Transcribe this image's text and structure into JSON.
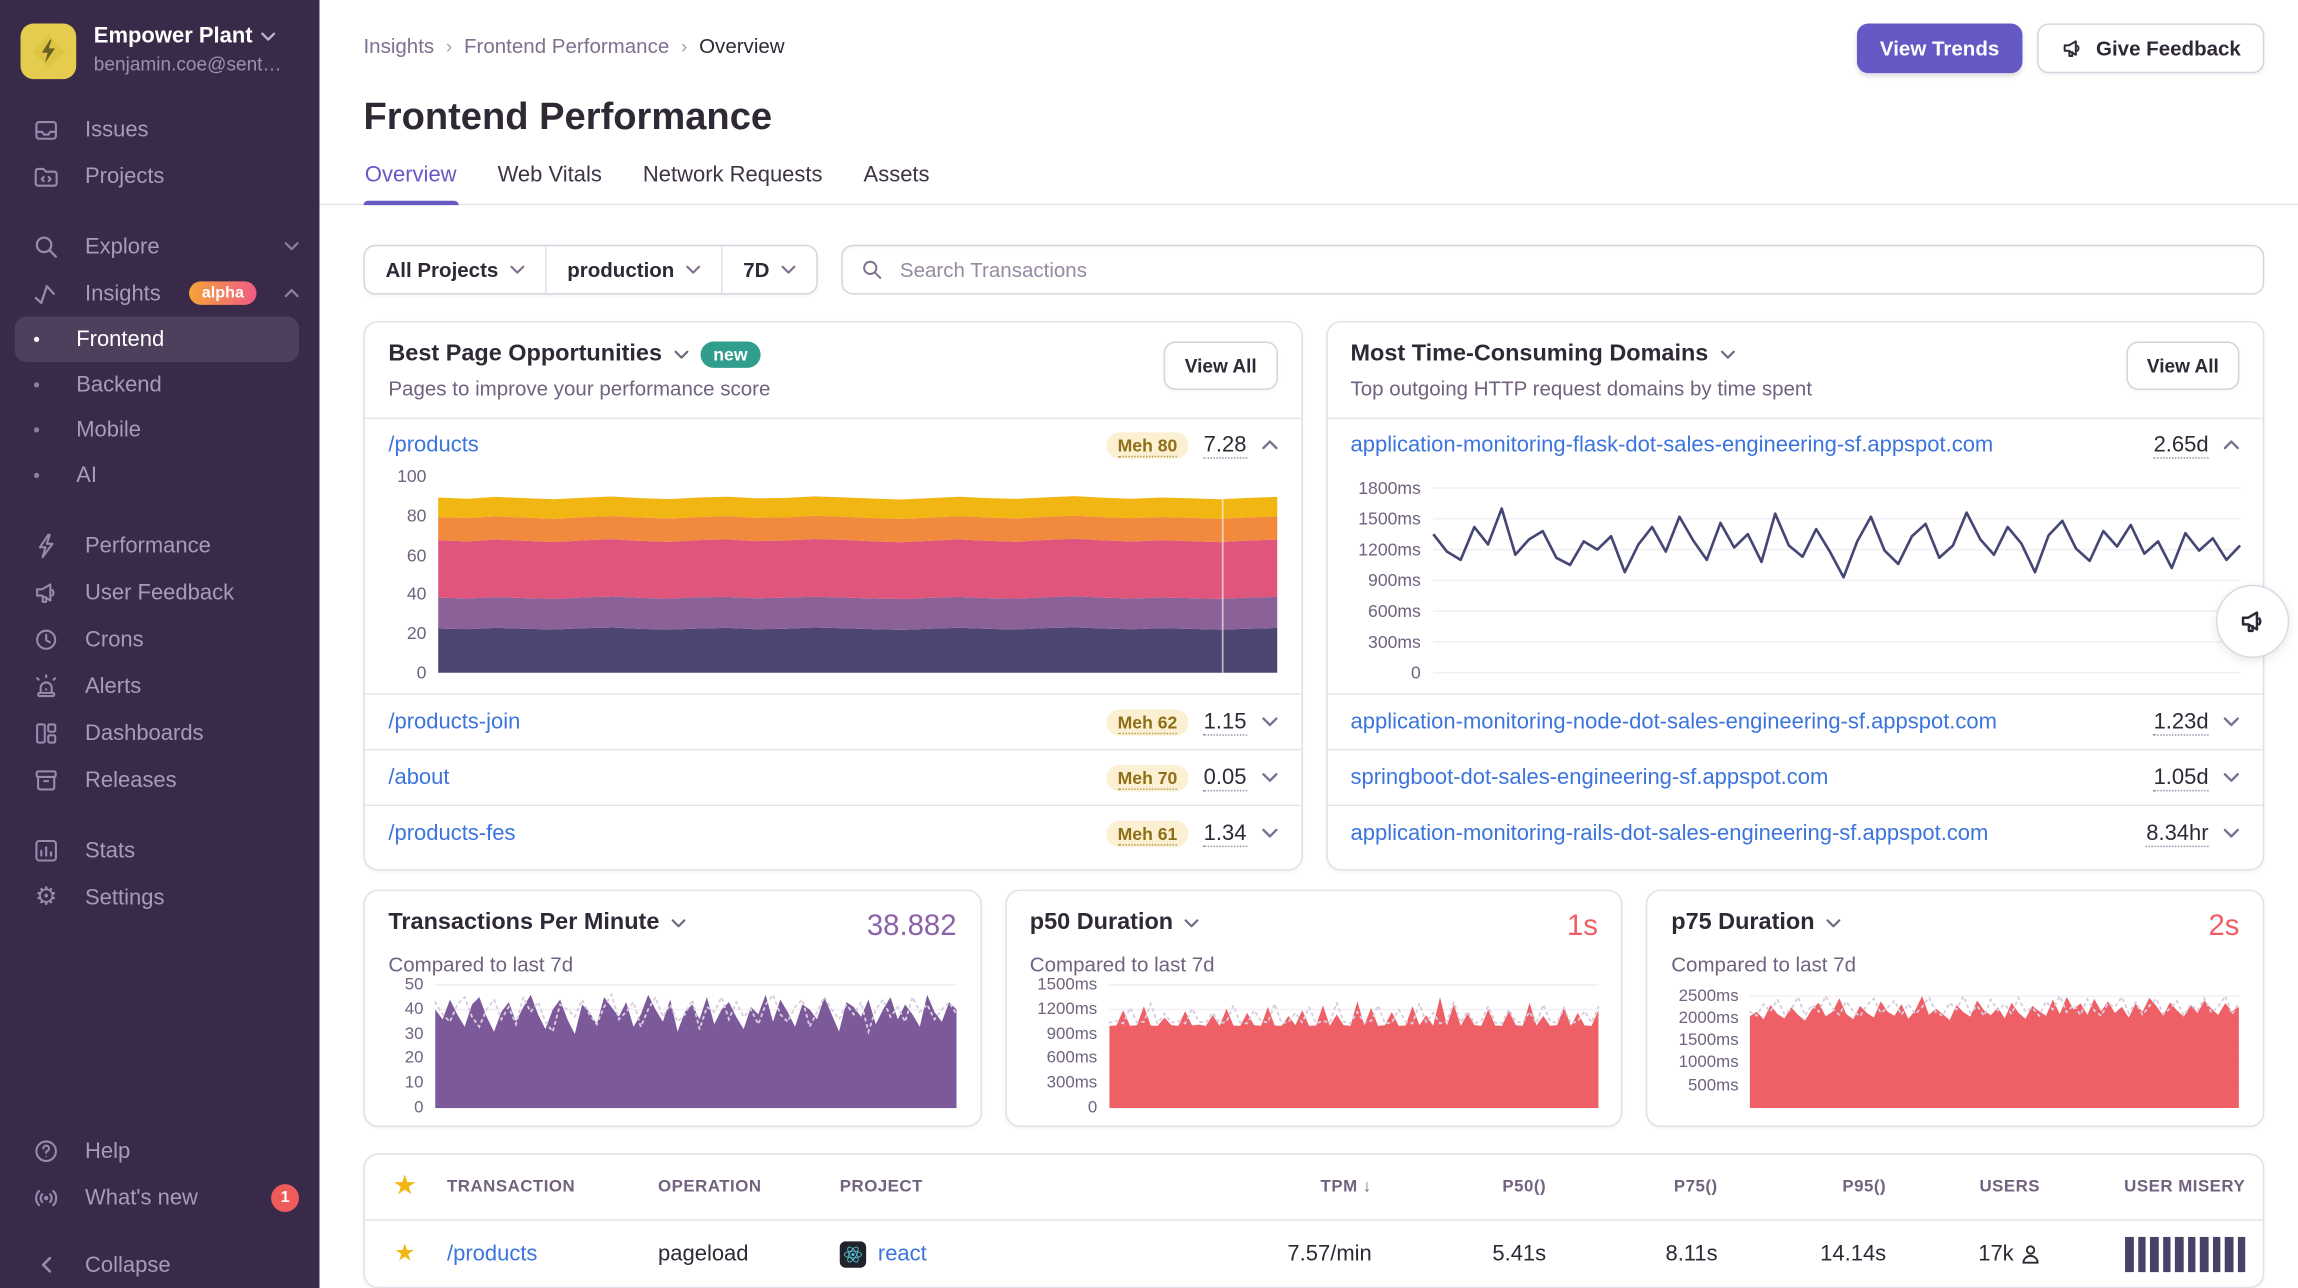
{
  "colors": {
    "accent": "#6559C5",
    "link": "#3C74DD",
    "sidebar_bg": "#3A2A4A",
    "red_value": "#EF5E65",
    "purple_value": "#8A63A8",
    "star": "#F2B712"
  },
  "sidebar": {
    "org_name": "Empower Plant",
    "org_email": "benjamin.coe@sent…",
    "issues": "Issues",
    "projects": "Projects",
    "explore": "Explore",
    "insights": "Insights",
    "insights_badge": "alpha",
    "frontend": "Frontend",
    "backend": "Backend",
    "mobile": "Mobile",
    "ai": "AI",
    "performance": "Performance",
    "user_feedback": "User Feedback",
    "crons": "Crons",
    "alerts": "Alerts",
    "dashboards": "Dashboards",
    "releases": "Releases",
    "stats": "Stats",
    "settings": "Settings",
    "help": "Help",
    "whats_new": "What's new",
    "whats_new_badge": "1",
    "collapse": "Collapse"
  },
  "header": {
    "breadcrumb": [
      "Insights",
      "Frontend Performance",
      "Overview"
    ],
    "title": "Frontend Performance",
    "view_trends": "View Trends",
    "give_feedback": "Give Feedback"
  },
  "tabs": {
    "overview": "Overview",
    "web_vitals": "Web Vitals",
    "network_requests": "Network Requests",
    "assets": "Assets"
  },
  "filters": {
    "projects": "All Projects",
    "environment": "production",
    "date_range": "7D",
    "search_placeholder": "Search Transactions"
  },
  "best_pages": {
    "title": "Best Page Opportunities",
    "badge": "new",
    "subtitle": "Pages to improve your performance score",
    "view_all": "View All",
    "expanded_row": {
      "page": "/products",
      "score_label": "Meh 80",
      "value": "7.28"
    },
    "rows": [
      {
        "page": "/products-join",
        "score_label": "Meh 62",
        "value": "1.15"
      },
      {
        "page": "/about",
        "score_label": "Meh 70",
        "value": "0.05"
      },
      {
        "page": "/products-fes",
        "score_label": "Meh 61",
        "value": "1.34"
      }
    ]
  },
  "domains": {
    "title": "Most Time-Consuming Domains",
    "subtitle": "Top outgoing HTTP request domains by time spent",
    "view_all": "View All",
    "expanded_row": {
      "domain": "application-monitoring-flask-dot-sales-engineering-sf.appspot.com",
      "value": "2.65d"
    },
    "rows": [
      {
        "domain": "application-monitoring-node-dot-sales-engineering-sf.appspot.com",
        "value": "1.23d"
      },
      {
        "domain": "springboot-dot-sales-engineering-sf.appspot.com",
        "value": "1.05d"
      },
      {
        "domain": "application-monitoring-rails-dot-sales-engineering-sf.appspot.com",
        "value": "8.34hr"
      }
    ]
  },
  "metrics": {
    "tpm": {
      "title": "Transactions Per Minute",
      "value": "38.882",
      "subtitle": "Compared to last 7d"
    },
    "p50": {
      "title": "p50 Duration",
      "value": "1s",
      "subtitle": "Compared to last 7d"
    },
    "p75": {
      "title": "p75 Duration",
      "value": "2s",
      "subtitle": "Compared to last 7d"
    }
  },
  "table": {
    "headers": {
      "transaction": "TRANSACTION",
      "operation": "OPERATION",
      "project": "PROJECT",
      "tpm": "TPM",
      "sort_arrow": "↓",
      "p50": "P50()",
      "p75": "P75()",
      "p95": "P95()",
      "users": "USERS",
      "user_misery": "USER MISERY"
    },
    "row": {
      "transaction": "/products",
      "operation": "pageload",
      "project": "react",
      "tpm": "7.57/min",
      "p50": "5.41s",
      "p75": "8.11s",
      "p95": "14.14s",
      "users": "17k",
      "user_misery_bars": 10
    }
  },
  "chart_data": [
    {
      "id": "page-score-stack",
      "type": "area",
      "stacked": true,
      "title": "/products performance score breakdown",
      "ymax": 100,
      "grid": false,
      "marker_x": 0.935,
      "ticks": [
        {
          "v": 100,
          "l": "100"
        },
        {
          "v": 80,
          "l": "80"
        },
        {
          "v": 60,
          "l": "60"
        },
        {
          "v": 40,
          "l": "40"
        },
        {
          "v": 20,
          "l": "20"
        },
        {
          "v": 0,
          "l": "0"
        }
      ],
      "cumulative": true,
      "series": [
        {
          "name": "band-1",
          "color": "#4D4673",
          "values": [
            22.5,
            22.2,
            22.8,
            22.4,
            22.0,
            22.6,
            23.0,
            22.3,
            21.9,
            22.5,
            22.8,
            22.1,
            22.4,
            23.0,
            22.6,
            22.2,
            21.8,
            22.4,
            22.9,
            22.3,
            22.0,
            22.7,
            23.1,
            22.5,
            22.1,
            22.6,
            22.3,
            21.9,
            22.4,
            22.8
          ]
        },
        {
          "name": "band-2",
          "color": "#8A6298",
          "values": [
            38.2,
            37.8,
            38.5,
            38.0,
            37.6,
            38.3,
            38.8,
            38.1,
            37.7,
            38.4,
            38.6,
            37.9,
            38.2,
            38.7,
            38.3,
            37.8,
            37.5,
            38.1,
            38.6,
            38.0,
            37.7,
            38.4,
            38.9,
            38.2,
            37.8,
            38.3,
            38.0,
            37.6,
            38.2,
            38.6
          ]
        },
        {
          "name": "band-3",
          "color": "#E0557B",
          "values": [
            67.5,
            66.8,
            67.8,
            67.2,
            66.5,
            67.4,
            68.0,
            67.1,
            66.6,
            67.5,
            67.9,
            67.0,
            67.3,
            68.1,
            67.6,
            66.9,
            66.4,
            67.2,
            67.9,
            67.1,
            66.7,
            67.6,
            68.2,
            67.4,
            66.8,
            67.5,
            67.0,
            66.5,
            67.3,
            67.8
          ]
        },
        {
          "name": "band-4",
          "color": "#F28A3D",
          "values": [
            79.3,
            78.7,
            79.6,
            79.0,
            78.4,
            79.2,
            79.8,
            79.0,
            78.5,
            79.3,
            79.7,
            78.9,
            79.1,
            79.9,
            79.4,
            78.8,
            78.3,
            79.0,
            79.7,
            79.0,
            78.6,
            79.4,
            80.0,
            79.2,
            78.7,
            79.3,
            78.9,
            78.4,
            79.1,
            79.6
          ]
        },
        {
          "name": "band-5",
          "color": "#F1B612",
          "values": [
            89.2,
            88.6,
            89.5,
            88.9,
            88.3,
            89.1,
            89.7,
            88.9,
            88.4,
            89.2,
            89.6,
            88.8,
            89.0,
            89.8,
            89.3,
            88.7,
            88.2,
            88.9,
            89.6,
            88.9,
            88.5,
            89.3,
            89.9,
            89.1,
            88.6,
            89.2,
            88.8,
            88.3,
            89.0,
            89.5
          ]
        }
      ]
    },
    {
      "id": "domain-duration",
      "type": "line",
      "title": "flask domain time spent (ms)",
      "ymax": 1800,
      "grid": true,
      "color": "#444674",
      "ticks": [
        {
          "v": 1800,
          "l": "1800ms"
        },
        {
          "v": 1500,
          "l": "1500ms"
        },
        {
          "v": 1200,
          "l": "1200ms"
        },
        {
          "v": 900,
          "l": "900ms"
        },
        {
          "v": 600,
          "l": "600ms"
        },
        {
          "v": 300,
          "l": "300ms"
        },
        {
          "v": 0,
          "l": "0"
        }
      ],
      "values": [
        1350,
        1180,
        1100,
        1420,
        1250,
        1600,
        1150,
        1300,
        1380,
        1120,
        1050,
        1280,
        1200,
        1330,
        980,
        1250,
        1420,
        1180,
        1520,
        1290,
        1100,
        1460,
        1220,
        1350,
        1080,
        1550,
        1240,
        1130,
        1400,
        1180,
        930,
        1280,
        1520,
        1190,
        1060,
        1330,
        1450,
        1120,
        1240,
        1560,
        1300,
        1150,
        1420,
        1260,
        980,
        1340,
        1480,
        1210,
        1090,
        1380,
        1230,
        1440,
        1160,
        1280,
        1020,
        1360,
        1190,
        1310,
        1100,
        1240
      ]
    },
    {
      "id": "tpm",
      "type": "area",
      "title": "Transactions Per Minute",
      "ymax": 50,
      "grid": true,
      "color": "#7C5A99",
      "prev_color": "#D6CEDF",
      "ticks": [
        {
          "v": 50,
          "l": "50"
        },
        {
          "v": 40,
          "l": "40"
        },
        {
          "v": 30,
          "l": "30"
        },
        {
          "v": 20,
          "l": "20"
        },
        {
          "v": 10,
          "l": "10"
        },
        {
          "v": 0,
          "l": "0"
        }
      ],
      "values": [
        40,
        36,
        44,
        38,
        33,
        42,
        45,
        37,
        31,
        39,
        43,
        35,
        41,
        46,
        38,
        32,
        40,
        44,
        36,
        30,
        42,
        39,
        34,
        45,
        41,
        37,
        43,
        33,
        38,
        46,
        40,
        35,
        44,
        31,
        39,
        42,
        36,
        45,
        34,
        40,
        43,
        37,
        32,
        41,
        38,
        46,
        35,
        44,
        39,
        33,
        42,
        40,
        36,
        45,
        38,
        31,
        43,
        41,
        37,
        44,
        34,
        40,
        45,
        36,
        42,
        38,
        33,
        46,
        39,
        35,
        43,
        40
      ],
      "prev": [
        43,
        38,
        35,
        42,
        45,
        37,
        33,
        40,
        44,
        36,
        41,
        34,
        45,
        39,
        43,
        35,
        31,
        42,
        40,
        37,
        44,
        38,
        34,
        41,
        46,
        36,
        39,
        43,
        33,
        40,
        45,
        37,
        42,
        35,
        38,
        44,
        32,
        41,
        39,
        45,
        36,
        43,
        37,
        40,
        34,
        42,
        46,
        38,
        35,
        41,
        44,
        33,
        39,
        45,
        40,
        36,
        42,
        38,
        43,
        31,
        40,
        44,
        37,
        41,
        35,
        45,
        39,
        42,
        36,
        40,
        43,
        38
      ]
    },
    {
      "id": "p50",
      "type": "area",
      "title": "p50 Duration (ms)",
      "ymax": 1500,
      "grid": true,
      "color": "#EE6066",
      "prev_color": "#D6CEDF",
      "ticks": [
        {
          "v": 1500,
          "l": "1500ms"
        },
        {
          "v": 1200,
          "l": "1200ms"
        },
        {
          "v": 900,
          "l": "900ms"
        },
        {
          "v": 600,
          "l": "600ms"
        },
        {
          "v": 300,
          "l": "300ms"
        },
        {
          "v": 0,
          "l": "0"
        }
      ],
      "values": [
        1000,
        1005,
        1190,
        1000,
        1010,
        1240,
        1005,
        1000,
        1100,
        1010,
        1000,
        1180,
        1005,
        1015,
        1000,
        1130,
        1000,
        1210,
        1005,
        1000,
        1160,
        1010,
        1000,
        1230,
        1005,
        1000,
        1120,
        1010,
        1190,
        1000,
        1005,
        1250,
        1000,
        1140,
        1010,
        1000,
        1300,
        1005,
        1220,
        1000,
        1010,
        1170,
        1000,
        1005,
        1240,
        1010,
        1130,
        1000,
        1350,
        1005,
        1260,
        1000,
        1150,
        1010,
        1000,
        1200,
        1005,
        1000,
        1180,
        1010,
        1000,
        1280,
        1005,
        1120,
        1000,
        1010,
        1230,
        1000,
        1160,
        1005,
        1000,
        1190
      ],
      "prev": [
        1040,
        1060,
        1030,
        1220,
        1040,
        1050,
        1270,
        1030,
        1150,
        1040,
        1060,
        1030,
        1210,
        1050,
        1040,
        1160,
        1030,
        1050,
        1250,
        1040,
        1030,
        1190,
        1060,
        1040,
        1270,
        1030,
        1050,
        1160,
        1040,
        1230,
        1030,
        1060,
        1040,
        1280,
        1050,
        1030,
        1170,
        1040,
        1060,
        1250,
        1030,
        1040,
        1200,
        1050,
        1030,
        1270,
        1040,
        1160,
        1030,
        1050,
        1290,
        1040,
        1180,
        1030,
        1060,
        1240,
        1040,
        1030,
        1200,
        1050,
        1040,
        1170,
        1030,
        1260,
        1050,
        1040,
        1220,
        1030,
        1060,
        1180,
        1040,
        1230
      ]
    },
    {
      "id": "p75",
      "type": "area",
      "title": "p75 Duration (ms)",
      "ymax": 2750,
      "grid": true,
      "color": "#EE6066",
      "prev_color": "#D6CEDF",
      "ticks": [
        {
          "v": 2500,
          "l": "2500ms"
        },
        {
          "v": 2000,
          "l": "2000ms"
        },
        {
          "v": 1500,
          "l": "1500ms"
        },
        {
          "v": 1000,
          "l": "1000ms"
        },
        {
          "v": 500,
          "l": "500ms"
        }
      ],
      "values": [
        2050,
        2150,
        1980,
        2300,
        2100,
        2000,
        2250,
        2080,
        1950,
        2200,
        2350,
        2050,
        2150,
        2450,
        2100,
        1980,
        2280,
        2120,
        2020,
        2380,
        2150,
        2060,
        2320,
        1990,
        2180,
        2500,
        2080,
        2220,
        2100,
        1960,
        2300,
        2140,
        2040,
        2400,
        2180,
        2070,
        2250,
        2000,
        2350,
        2130,
        1990,
        2280,
        2160,
        2060,
        2420,
        2100,
        2480,
        2200,
        2340,
        2080,
        2440,
        2160,
        2380,
        2120,
        2260,
        2020,
        2330,
        2150,
        2460,
        2280,
        2060,
        2360,
        2180,
        2040,
        2300,
        2120,
        2400,
        2220,
        2080,
        2340,
        2160,
        2260
      ],
      "prev": [
        2150,
        2060,
        2320,
        2150,
        2420,
        2100,
        2200,
        2480,
        2060,
        2300,
        2150,
        2500,
        2220,
        2080,
        2380,
        2160,
        2050,
        2300,
        2440,
        2120,
        2240,
        2400,
        2080,
        2320,
        2100,
        2250,
        2470,
        2140,
        2060,
        2350,
        2200,
        2500,
        2120,
        2280,
        2060,
        2420,
        2180,
        2320,
        2100,
        2460,
        2150,
        2240,
        2060,
        2380,
        2200,
        2500,
        2140,
        2300,
        2080,
        2430,
        2180,
        2060,
        2330,
        2250,
        2480,
        2120,
        2360,
        2080,
        2280,
        2440,
        2100,
        2220,
        2390,
        2060,
        2310,
        2170,
        2450,
        2130,
        2260,
        2500,
        2090,
        2350
      ]
    }
  ]
}
